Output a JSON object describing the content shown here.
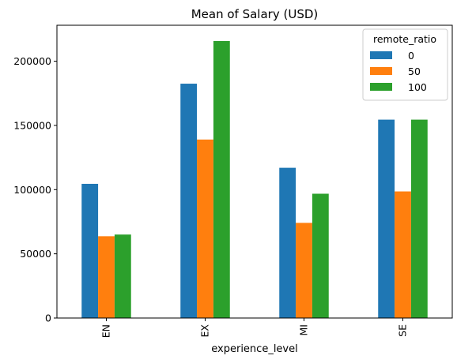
{
  "chart_data": {
    "type": "bar",
    "title": "Mean of Salary (USD)",
    "xlabel": "experience_level",
    "ylabel": "",
    "categories": [
      "EN",
      "EX",
      "MI",
      "SE"
    ],
    "series": [
      {
        "name": "0",
        "color": "#1f77b4",
        "values": [
          104500,
          182500,
          117000,
          154500
        ]
      },
      {
        "name": "50",
        "color": "#ff7f0e",
        "values": [
          63700,
          139000,
          74100,
          98600
        ]
      },
      {
        "name": "100",
        "color": "#2ca02c",
        "values": [
          65000,
          215700,
          96800,
          154500
        ]
      }
    ],
    "ylim": [
      0,
      228000
    ],
    "yticks": [
      0,
      50000,
      100000,
      150000,
      200000
    ],
    "ytick_labels": [
      "0",
      "50000",
      "100000",
      "150000",
      "200000"
    ],
    "legend": {
      "title": "remote_ratio",
      "placement": "top-right"
    },
    "grid": false
  }
}
